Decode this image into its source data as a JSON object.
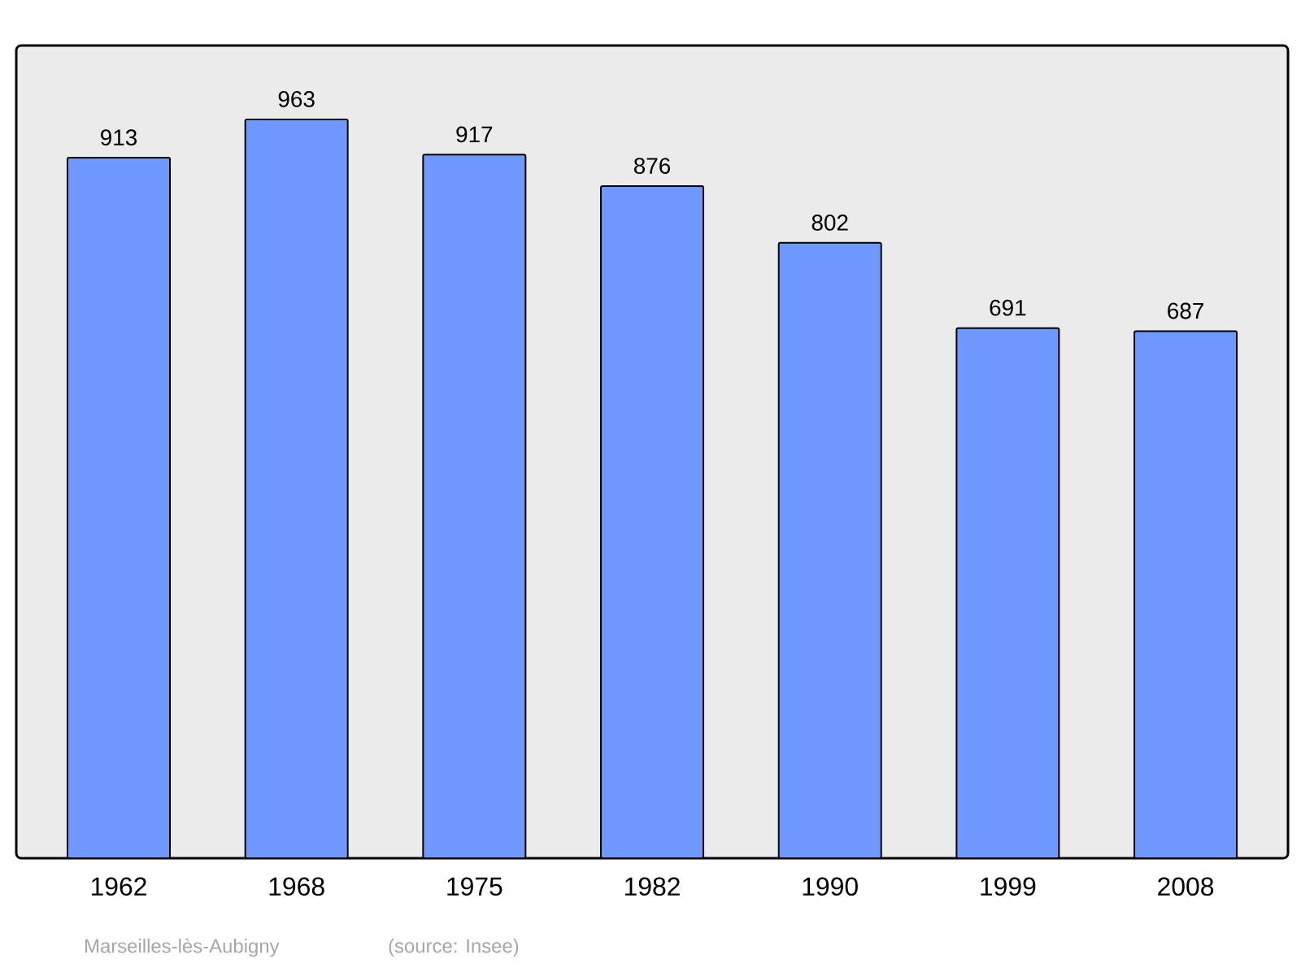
{
  "chart_data": {
    "type": "bar",
    "categories": [
      "1962",
      "1968",
      "1975",
      "1982",
      "1990",
      "1999",
      "2008"
    ],
    "values": [
      913,
      963,
      917,
      876,
      802,
      691,
      687
    ],
    "color": "#7099ff",
    "data_labels": true,
    "annotations": [
      "Marseilles-lès-Aubigny",
      "(source: Insee)"
    ]
  }
}
